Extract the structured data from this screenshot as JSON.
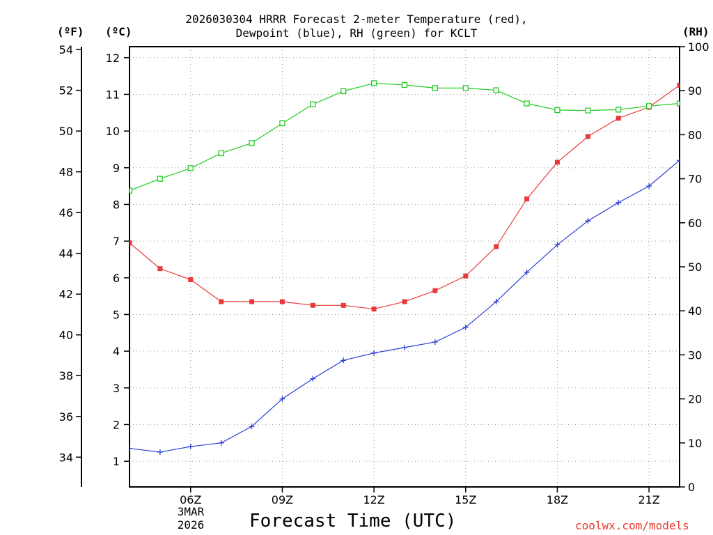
{
  "title_line1": "2026030304 HRRR Forecast 2-meter Temperature (red),",
  "title_line2": "Dewpoint (blue), RH (green) for KCLT",
  "unit_f": "(ºF)",
  "unit_c": "(ºC)",
  "unit_rh": "(RH)",
  "xlabel": "Forecast Time (UTC)",
  "credit": "coolwx.com/models",
  "date_day": "3MAR",
  "date_year": "2026",
  "colors": {
    "temperature": "#e8383a",
    "dewpoint": "#2a3fd6",
    "rh": "#22cc22",
    "grid": "#999999"
  },
  "chart_data": {
    "type": "line",
    "title": "2026030304 HRRR Forecast 2-meter Temperature (red), Dewpoint (blue), RH (green) for KCLT",
    "xlabel": "Forecast Time (UTC)",
    "x": [
      4,
      5,
      6,
      7,
      8,
      9,
      10,
      11,
      12,
      13,
      14,
      15,
      16,
      17,
      18,
      19,
      20,
      21,
      22
    ],
    "xlim": [
      4,
      22
    ],
    "xticks": [
      6,
      9,
      12,
      15,
      18,
      21
    ],
    "xtick_labels": [
      "06Z",
      "09Z",
      "12Z",
      "15Z",
      "18Z",
      "21Z"
    ],
    "left_axis_c": {
      "label": "(ºC)",
      "range": [
        0.3,
        12.3
      ],
      "ticks": [
        1,
        2,
        3,
        4,
        5,
        6,
        7,
        8,
        9,
        10,
        11,
        12
      ]
    },
    "left_axis_f": {
      "label": "(ºF)",
      "range": [
        32.54,
        54.14
      ],
      "ticks": [
        34,
        36,
        38,
        40,
        42,
        44,
        46,
        48,
        50,
        52,
        54
      ]
    },
    "right_axis_rh": {
      "label": "(RH)",
      "range": [
        0,
        100
      ],
      "ticks": [
        0,
        10,
        20,
        30,
        40,
        50,
        60,
        70,
        80,
        90,
        100
      ]
    },
    "series": [
      {
        "name": "Temperature",
        "axis": "C",
        "marker": "filled-square",
        "values": [
          6.95,
          6.25,
          5.95,
          5.35,
          5.35,
          5.35,
          5.25,
          5.25,
          5.15,
          5.35,
          5.65,
          6.05,
          6.85,
          8.15,
          9.15,
          9.85,
          10.35,
          10.65,
          11.25
        ]
      },
      {
        "name": "Dewpoint",
        "axis": "C",
        "marker": "plus",
        "values": [
          1.35,
          1.25,
          1.4,
          1.5,
          1.95,
          2.7,
          3.25,
          3.75,
          3.95,
          4.1,
          4.25,
          4.65,
          5.35,
          6.15,
          6.9,
          7.55,
          8.05,
          8.5,
          9.2
        ]
      },
      {
        "name": "RH",
        "axis": "RH",
        "marker": "open-square",
        "values": [
          67.3,
          70,
          72.4,
          75.8,
          78.1,
          82.6,
          86.9,
          89.9,
          91.7,
          91.3,
          90.6,
          90.6,
          90.1,
          87.1,
          85.6,
          85.5,
          85.7,
          86.5,
          87.1
        ]
      }
    ]
  }
}
